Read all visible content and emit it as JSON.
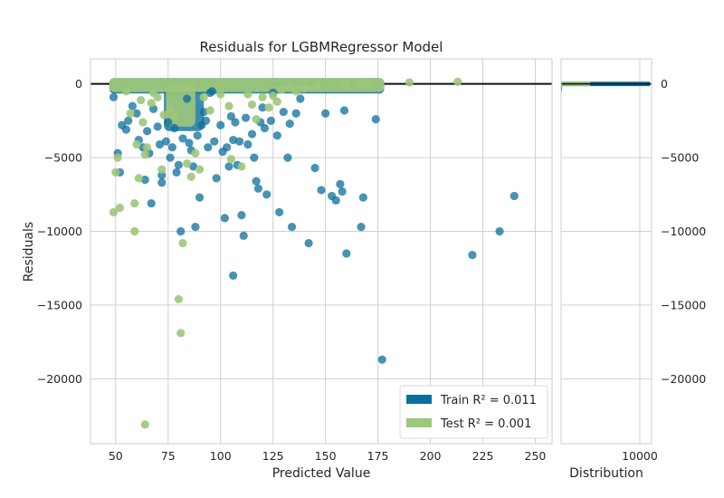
{
  "chart_data": {
    "type": "scatter",
    "title": "Residuals for LGBMRegressor Model",
    "xlabel": "Predicted Value",
    "ylabel": "Residuals",
    "xlim": [
      38,
      258
    ],
    "ylim": [
      -24400,
      1700
    ],
    "x_ticks": [
      50,
      75,
      100,
      125,
      150,
      175,
      200,
      225,
      250
    ],
    "y_ticks": [
      0,
      -5000,
      -10000,
      -15000,
      -20000
    ],
    "y_tick_labels": [
      "0",
      "−5000",
      "−10000",
      "−15000",
      "−20000"
    ],
    "zero_line": 0,
    "grid": true,
    "legend_position": "lower-right",
    "colors": {
      "train": "#0b6e9c",
      "test": "#9dc77a",
      "grid": "#d0d0d0",
      "hline": "#111111"
    },
    "series": [
      {
        "name": "Train R² = 0.011",
        "key": "train",
        "points": [
          [
            49,
            -900
          ],
          [
            51,
            -4700
          ],
          [
            52,
            -6000
          ],
          [
            53,
            -2800
          ],
          [
            55,
            -3100
          ],
          [
            56,
            -2500
          ],
          [
            58,
            -1500
          ],
          [
            60,
            -2000
          ],
          [
            61,
            -3800
          ],
          [
            63,
            -4300
          ],
          [
            64,
            -6500
          ],
          [
            65,
            -3200
          ],
          [
            66,
            -4700
          ],
          [
            67,
            -8100
          ],
          [
            68,
            -1700
          ],
          [
            70,
            -2900
          ],
          [
            71,
            -4100
          ],
          [
            72,
            -6200
          ],
          [
            72,
            -6700
          ],
          [
            74,
            -3900
          ],
          [
            75,
            -2600
          ],
          [
            76,
            -5000
          ],
          [
            77,
            -4300
          ],
          [
            78,
            -3000
          ],
          [
            79,
            -6000
          ],
          [
            80,
            -5500
          ],
          [
            81,
            -10000
          ],
          [
            82,
            -3700
          ],
          [
            84,
            -1000
          ],
          [
            85,
            -4000
          ],
          [
            86,
            -4500
          ],
          [
            87,
            -5600
          ],
          [
            88,
            -9700
          ],
          [
            89,
            -3500
          ],
          [
            90,
            -7700
          ],
          [
            91,
            -2800
          ],
          [
            92,
            -1900
          ],
          [
            93,
            -2500
          ],
          [
            94,
            -4300
          ],
          [
            95,
            -600
          ],
          [
            96,
            -500
          ],
          [
            97,
            -3900
          ],
          [
            98,
            -6400
          ],
          [
            100,
            -2800
          ],
          [
            101,
            -4600
          ],
          [
            102,
            -9100
          ],
          [
            103,
            -4300
          ],
          [
            104,
            -5600
          ],
          [
            105,
            -2200
          ],
          [
            106,
            -3800
          ],
          [
            106,
            -13000
          ],
          [
            107,
            -2600
          ],
          [
            108,
            -5500
          ],
          [
            109,
            -3900
          ],
          [
            110,
            -8900
          ],
          [
            111,
            -10300
          ],
          [
            112,
            -2300
          ],
          [
            113,
            -4100
          ],
          [
            115,
            -3400
          ],
          [
            116,
            -5000
          ],
          [
            117,
            -6600
          ],
          [
            118,
            -7100
          ],
          [
            119,
            -2600
          ],
          [
            120,
            -1600
          ],
          [
            121,
            -3000
          ],
          [
            122,
            -7500
          ],
          [
            124,
            -2500
          ],
          [
            125,
            -600
          ],
          [
            127,
            -3500
          ],
          [
            128,
            -8700
          ],
          [
            130,
            -1900
          ],
          [
            132,
            -5000
          ],
          [
            133,
            -2700
          ],
          [
            134,
            -9700
          ],
          [
            136,
            -2000
          ],
          [
            138,
            -1000
          ],
          [
            142,
            -10800
          ],
          [
            145,
            -5700
          ],
          [
            148,
            -7200
          ],
          [
            150,
            -2000
          ],
          [
            153,
            -7600
          ],
          [
            155,
            -7900
          ],
          [
            157,
            -6800
          ],
          [
            158,
            -7300
          ],
          [
            159,
            -1800
          ],
          [
            160,
            -11500
          ],
          [
            167,
            -9700
          ],
          [
            168,
            -7700
          ],
          [
            174,
            -2400
          ],
          [
            177,
            -18700
          ],
          [
            220,
            -11600
          ],
          [
            233,
            -10000
          ],
          [
            240,
            -7600
          ]
        ],
        "dense_band": {
          "x_range": [
            47,
            178
          ],
          "y_range": [
            -400,
            150
          ]
        },
        "dense_cluster": {
          "x_range": [
            73,
            92
          ],
          "y_range": [
            -3200,
            0
          ]
        }
      },
      {
        "name": "Test R² = 0.001",
        "key": "test",
        "points": [
          [
            49,
            -8700
          ],
          [
            50,
            -6000
          ],
          [
            51,
            -5000
          ],
          [
            52,
            -8400
          ],
          [
            55,
            -500
          ],
          [
            57,
            -2000
          ],
          [
            59,
            -10000
          ],
          [
            59,
            -8100
          ],
          [
            60,
            -4100
          ],
          [
            61,
            -6400
          ],
          [
            62,
            -1100
          ],
          [
            63,
            -2600
          ],
          [
            64,
            -4800
          ],
          [
            64,
            -23100
          ],
          [
            65,
            -4300
          ],
          [
            67,
            -1300
          ],
          [
            68,
            -600
          ],
          [
            70,
            -900
          ],
          [
            72,
            -5800
          ],
          [
            73,
            -2100
          ],
          [
            76,
            -1700
          ],
          [
            78,
            -2200
          ],
          [
            80,
            -14600
          ],
          [
            81,
            -16900
          ],
          [
            82,
            -10800
          ],
          [
            84,
            -5400
          ],
          [
            86,
            -6300
          ],
          [
            88,
            -4700
          ],
          [
            90,
            -5800
          ],
          [
            92,
            -900
          ],
          [
            95,
            -1800
          ],
          [
            100,
            -700
          ],
          [
            104,
            -1500
          ],
          [
            105,
            -5100
          ],
          [
            110,
            -5600
          ],
          [
            113,
            -700
          ],
          [
            115,
            -1400
          ],
          [
            117,
            -2400
          ],
          [
            120,
            -900
          ],
          [
            123,
            -1600
          ],
          [
            125,
            -800
          ],
          [
            127,
            -1200
          ],
          [
            129,
            -400
          ],
          [
            133,
            -200
          ],
          [
            136,
            -500
          ],
          [
            140,
            -300
          ],
          [
            146,
            -100
          ],
          [
            160,
            -100
          ],
          [
            166,
            50
          ],
          [
            170,
            0
          ],
          [
            190,
            100
          ],
          [
            213,
            150
          ]
        ],
        "dense_band": {
          "x_range": [
            47,
            178
          ],
          "y_range": [
            -300,
            150
          ]
        },
        "dense_cluster": {
          "x_range": [
            74,
            88
          ],
          "y_range": [
            -2900,
            0
          ]
        }
      }
    ],
    "distribution": {
      "xlabel": "Distribution",
      "x_ticks": [
        10000
      ],
      "xlim": [
        0,
        11500
      ],
      "bars": [
        {
          "key": "train",
          "y_bin": [
            -150,
            150
          ],
          "count": 11300
        },
        {
          "key": "test",
          "y_bin": [
            -150,
            150
          ],
          "count": 3700
        },
        {
          "key": "train",
          "y_bin": [
            -500,
            -150
          ],
          "count": 120
        }
      ]
    }
  }
}
